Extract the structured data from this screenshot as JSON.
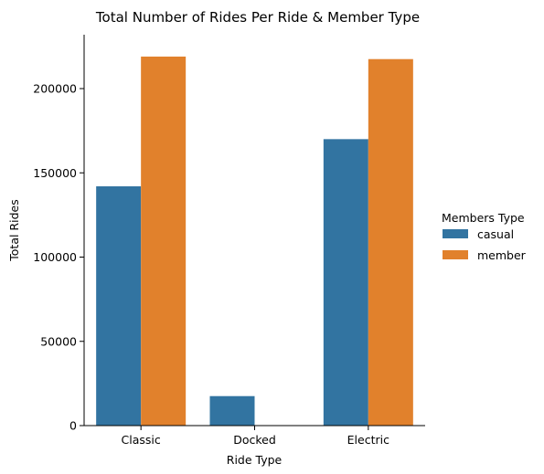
{
  "chart_data": {
    "type": "bar",
    "title": "Total Number of Rides Per Ride & Member Type",
    "xlabel": "Ride Type",
    "ylabel": "Total Rides",
    "categories": [
      "Classic",
      "Docked",
      "Electric"
    ],
    "series": [
      {
        "name": "casual",
        "color": "#3274a1",
        "values": [
          142000,
          17500,
          170000
        ]
      },
      {
        "name": "member",
        "color": "#e1812c",
        "values": [
          219000,
          0,
          217500
        ]
      }
    ],
    "ylim": [
      0,
      230000
    ],
    "yticks": [
      0,
      50000,
      100000,
      150000,
      200000
    ],
    "ytick_labels": [
      "0",
      "50000",
      "100000",
      "150000",
      "200000"
    ],
    "legend": {
      "title": "Members Type",
      "position": "right"
    },
    "grid": false
  }
}
